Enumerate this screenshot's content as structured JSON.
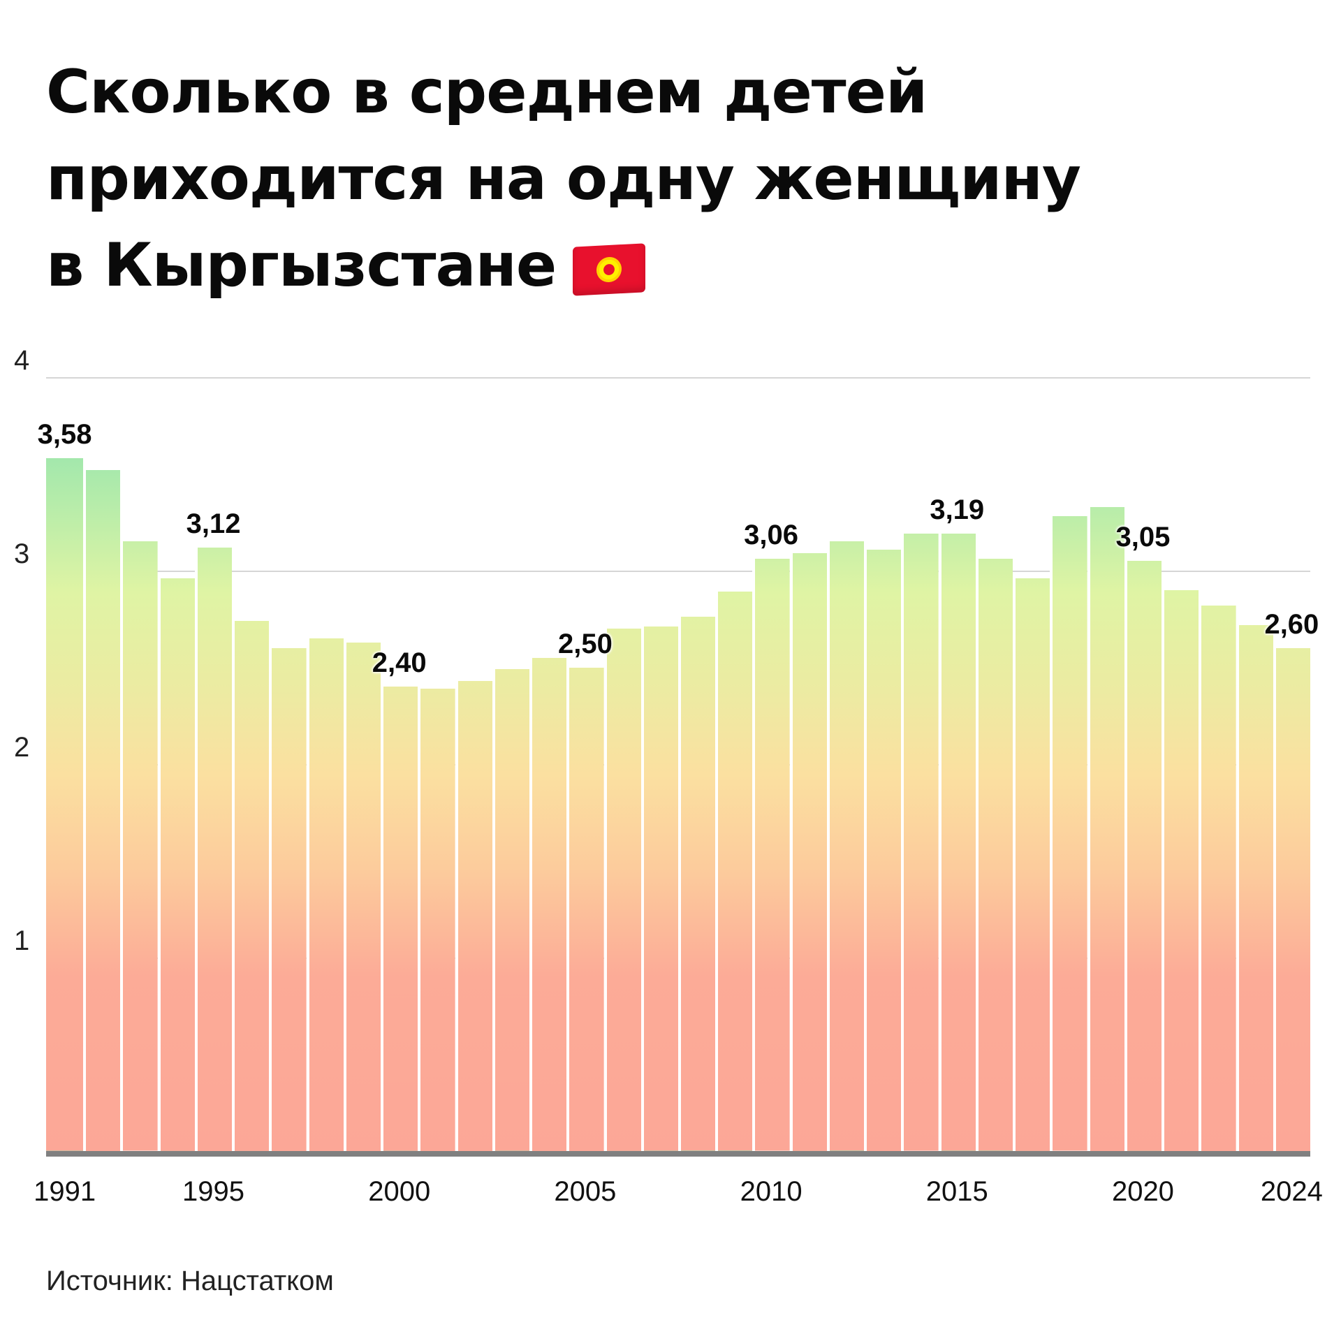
{
  "title": {
    "lines": [
      "Сколько в среднем детей",
      "приходится на одну женщину",
      "в Кыргызстане"
    ],
    "flag_icon": "kyrgyzstan-flag-icon"
  },
  "source": "Источник: Нацстатком",
  "colors": {
    "bar_top": "#82e0b0",
    "bar_mid": "#dff4a4",
    "bar_lower": "#fbe0a0",
    "bar_bottom": "#fca797",
    "gridline": "#d6d6d6",
    "axis": "#808080"
  },
  "chart_data": {
    "type": "bar",
    "title": "Сколько в среднем детей приходится на одну женщину в Кыргызстане",
    "xlabel": "",
    "ylabel": "",
    "ylim": [
      0,
      4
    ],
    "yticks": [
      "1",
      "2",
      "3",
      "4"
    ],
    "xtick_labels": [
      "1991",
      "1995",
      "2000",
      "2005",
      "2010",
      "2015",
      "2020",
      "2024"
    ],
    "grid": true,
    "legend": null,
    "categories": [
      "1991",
      "1992",
      "1993",
      "1994",
      "1995",
      "1996",
      "1997",
      "1998",
      "1999",
      "2000",
      "2001",
      "2002",
      "2003",
      "2004",
      "2005",
      "2006",
      "2007",
      "2008",
      "2009",
      "2010",
      "2011",
      "2012",
      "2013",
      "2014",
      "2015",
      "2016",
      "2017",
      "2018",
      "2019",
      "2020",
      "2021",
      "2022",
      "2023",
      "2024"
    ],
    "values": [
      3.58,
      3.52,
      3.15,
      2.96,
      3.12,
      2.74,
      2.6,
      2.65,
      2.63,
      2.4,
      2.39,
      2.43,
      2.49,
      2.55,
      2.5,
      2.7,
      2.71,
      2.76,
      2.89,
      3.06,
      3.09,
      3.15,
      3.11,
      3.19,
      3.19,
      3.06,
      2.96,
      3.28,
      3.33,
      3.05,
      2.9,
      2.82,
      2.72,
      2.6
    ],
    "annotations": [
      {
        "year": "1991",
        "label": "3,58"
      },
      {
        "year": "1995",
        "label": "3,12"
      },
      {
        "year": "2000",
        "label": "2,40"
      },
      {
        "year": "2005",
        "label": "2,50"
      },
      {
        "year": "2010",
        "label": "3,06"
      },
      {
        "year": "2015",
        "label": "3,19"
      },
      {
        "year": "2020",
        "label": "3,05"
      },
      {
        "year": "2024",
        "label": "2,60"
      }
    ]
  }
}
